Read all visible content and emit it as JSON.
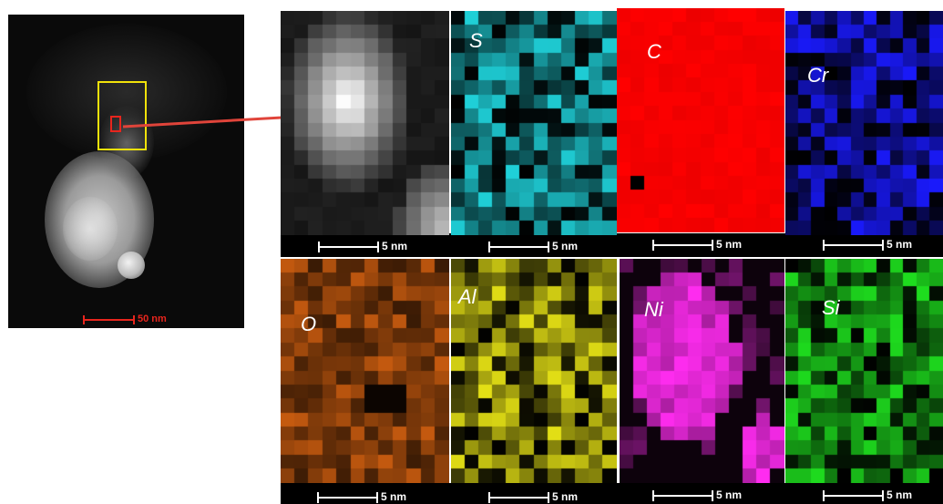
{
  "overview": {
    "scale_label": "50 nm"
  },
  "maps": [
    {
      "id": "haadf",
      "label": "",
      "scale_label": "5 nm",
      "color": "#ffffff"
    },
    {
      "id": "S",
      "label": "S",
      "scale_label": "5 nm",
      "color": "#1fd0d8"
    },
    {
      "id": "C",
      "label": "C",
      "scale_label": "5 nm",
      "color": "#ff0000"
    },
    {
      "id": "Cr",
      "label": "Cr",
      "scale_label": "5 nm",
      "color": "#1a1aff"
    },
    {
      "id": "O",
      "label": "O",
      "scale_label": "5 nm",
      "color": "#e86a12"
    },
    {
      "id": "Al",
      "label": "Al",
      "scale_label": "5 nm",
      "color": "#e4e015"
    },
    {
      "id": "Ni",
      "label": "Ni",
      "scale_label": "5 nm",
      "color": "#ff2cf0"
    },
    {
      "id": "Si",
      "label": "Si",
      "scale_label": "5 nm",
      "color": "#1edc1e"
    }
  ]
}
